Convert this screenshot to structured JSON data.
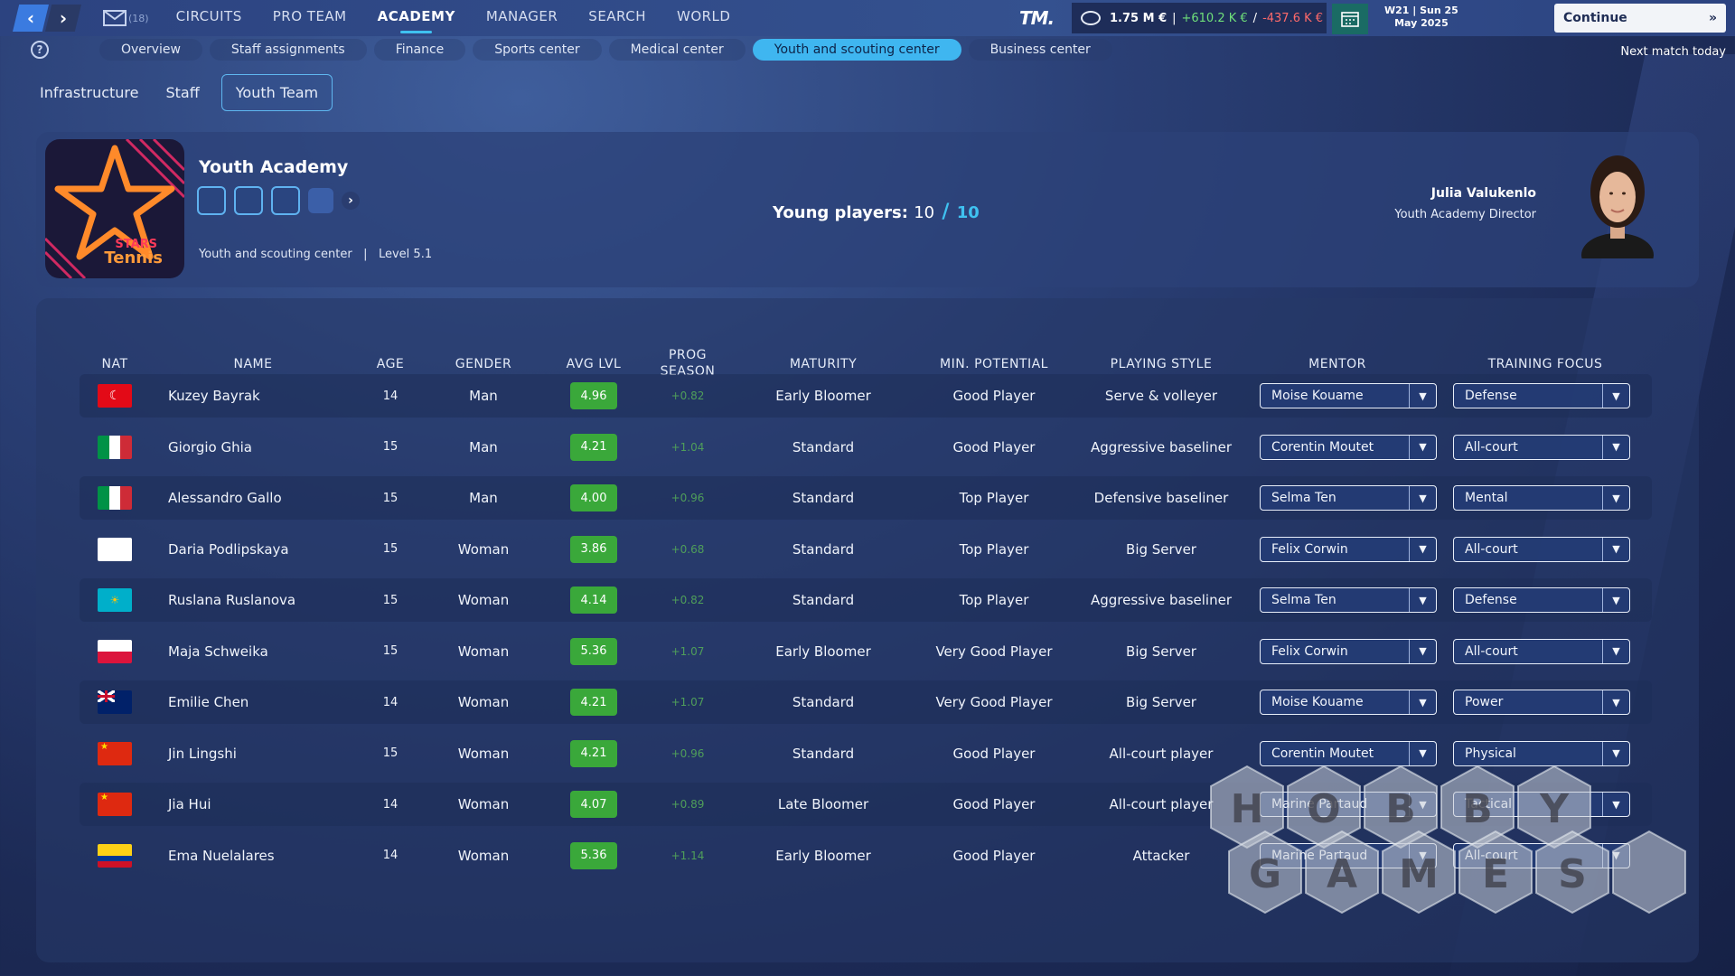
{
  "topbar": {
    "mail_count": "(18)",
    "nav": [
      "CIRCUITS",
      "PRO TEAM",
      "ACADEMY",
      "MANAGER",
      "SEARCH",
      "WORLD"
    ],
    "active_nav": "ACADEMY",
    "logo_text": "TM.",
    "balance": "1.75 M €",
    "income": "+610.2 K €",
    "expense": "-437.6 K €",
    "date_line1": "W21 | Sun 25",
    "date_line2": "May 2025",
    "continue_label": "Continue",
    "next_match": "Next match today"
  },
  "subnav": [
    "Overview",
    "Staff assignments",
    "Finance",
    "Sports center",
    "Medical center",
    "Youth and scouting center",
    "Business center"
  ],
  "tabs": [
    "Infrastructure",
    "Staff",
    "Youth Team"
  ],
  "academy": {
    "title": "Youth Academy",
    "facility": "Youth and scouting center",
    "level_label": "Level",
    "level": "5.1",
    "young_label": "Young players:",
    "young_current": "10",
    "young_max": "10",
    "logo_line1": "STARS",
    "logo_line2": "Tennis",
    "director_name": "Julia Valukenlo",
    "director_role": "Youth Academy Director"
  },
  "columns": [
    "NAT",
    "NAME",
    "AGE",
    "GENDER",
    "AVG LVL",
    "PROG SEASON",
    "MATURITY",
    "MIN. POTENTIAL",
    "PLAYING STYLE",
    "MENTOR",
    "TRAINING FOCUS"
  ],
  "players": [
    {
      "flag": "TR",
      "name": "Kuzey Bayrak",
      "age": "14",
      "gender": "Man",
      "lvl": "4.96",
      "prog": "+0.82",
      "maturity": "Early Bloomer",
      "potential": "Good Player",
      "style": "Serve & volleyer",
      "mentor": "Moise Kouame",
      "focus": "Defense"
    },
    {
      "flag": "IT",
      "name": "Giorgio Ghia",
      "age": "15",
      "gender": "Man",
      "lvl": "4.21",
      "prog": "+1.04",
      "maturity": "Standard",
      "potential": "Good Player",
      "style": "Aggressive baseliner",
      "mentor": "Corentin Moutet",
      "focus": "All-court"
    },
    {
      "flag": "IT",
      "name": "Alessandro Gallo",
      "age": "15",
      "gender": "Man",
      "lvl": "4.00",
      "prog": "+0.96",
      "maturity": "Standard",
      "potential": "Top Player",
      "style": "Defensive baseliner",
      "mentor": "Selma Ten",
      "focus": "Mental"
    },
    {
      "flag": "RU",
      "name": "Daria Podlipskaya",
      "age": "15",
      "gender": "Woman",
      "lvl": "3.86",
      "prog": "+0.68",
      "maturity": "Standard",
      "potential": "Top Player",
      "style": "Big Server",
      "mentor": "Felix Corwin",
      "focus": "All-court"
    },
    {
      "flag": "KZ",
      "name": "Ruslana Ruslanova",
      "age": "15",
      "gender": "Woman",
      "lvl": "4.14",
      "prog": "+0.82",
      "maturity": "Standard",
      "potential": "Top Player",
      "style": "Aggressive baseliner",
      "mentor": "Selma Ten",
      "focus": "Defense"
    },
    {
      "flag": "PL",
      "name": "Maja Schweika",
      "age": "15",
      "gender": "Woman",
      "lvl": "5.36",
      "prog": "+1.07",
      "maturity": "Early Bloomer",
      "potential": "Very Good Player",
      "style": "Big Server",
      "mentor": "Felix Corwin",
      "focus": "All-court"
    },
    {
      "flag": "AU",
      "name": "Emilie Chen",
      "age": "14",
      "gender": "Woman",
      "lvl": "4.21",
      "prog": "+1.07",
      "maturity": "Standard",
      "potential": "Very Good Player",
      "style": "Big Server",
      "mentor": "Moise Kouame",
      "focus": "Power"
    },
    {
      "flag": "CN",
      "name": "Jin Lingshi",
      "age": "15",
      "gender": "Woman",
      "lvl": "4.21",
      "prog": "+0.96",
      "maturity": "Standard",
      "potential": "Good Player",
      "style": "All-court player",
      "mentor": "Corentin Moutet",
      "focus": "Physical"
    },
    {
      "flag": "CN",
      "name": "Jia Hui",
      "age": "14",
      "gender": "Woman",
      "lvl": "4.07",
      "prog": "+0.89",
      "maturity": "Late Bloomer",
      "potential": "Good Player",
      "style": "All-court player",
      "mentor": "Marine Partaud",
      "focus": "Tactical"
    },
    {
      "flag": "CO",
      "name": "Ema Nuelalares",
      "age": "14",
      "gender": "Woman",
      "lvl": "5.36",
      "prog": "+1.14",
      "maturity": "Early Bloomer",
      "potential": "Good Player",
      "style": "Attacker",
      "mentor": "Marine Partaud",
      "focus": "All-court"
    }
  ],
  "watermark": {
    "line1": "HOBBY",
    "line2": "GAMES"
  },
  "colors": {
    "accent": "#3fc1f0",
    "level_green": "#3aa83a",
    "income": "#6fe07a",
    "expense": "#ff6a6a"
  }
}
